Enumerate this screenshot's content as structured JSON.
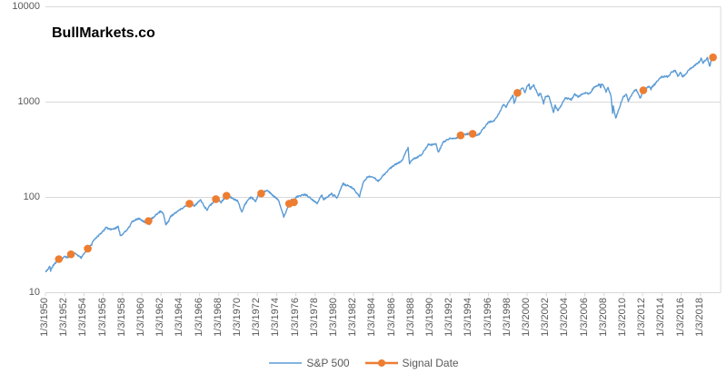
{
  "brand": "BullMarkets.co",
  "chart_data": {
    "type": "line",
    "title": "BullMarkets.co",
    "x_axis": {
      "type": "date",
      "label_rotation_deg": 90,
      "tick_labels": [
        "1/3/1950",
        "1/3/1952",
        "1/3/1954",
        "1/3/1956",
        "1/3/1958",
        "1/3/1960",
        "1/3/1962",
        "1/3/1964",
        "1/3/1966",
        "1/3/1968",
        "1/3/1970",
        "1/3/1972",
        "1/3/1974",
        "1/3/1976",
        "1/3/1978",
        "1/3/1980",
        "1/3/1982",
        "1/3/1984",
        "1/3/1986",
        "1/3/1988",
        "1/3/1990",
        "1/3/1992",
        "1/3/1994",
        "1/3/1996",
        "1/3/1998",
        "1/3/2000",
        "1/3/2002",
        "1/3/2004",
        "1/3/2006",
        "1/3/2008",
        "1/3/2010",
        "1/3/2012",
        "1/3/2014",
        "1/3/2016",
        "1/3/2018"
      ],
      "x_range_years": [
        1950.0,
        2019.4
      ]
    },
    "y_axis": {
      "scale": "log",
      "ticks": [
        10,
        100,
        1000,
        10000
      ],
      "range": [
        10,
        10000
      ],
      "gridlines": true
    },
    "legend": {
      "position": "bottom",
      "entries": [
        "S&P 500",
        "Signal Date"
      ]
    },
    "colors": {
      "sp500": "#5B9BD5",
      "signal": "#ED7D31",
      "grid": "#D9D9D9",
      "axis_text": "#595959"
    },
    "series": [
      {
        "name": "S&P 500",
        "type": "line",
        "color": "#5B9BD5",
        "points": [
          [
            1950.0,
            16.7
          ],
          [
            1950.12,
            17.0
          ],
          [
            1950.45,
            18.7
          ],
          [
            1950.54,
            17.0
          ],
          [
            1950.7,
            18.5
          ],
          [
            1951.0,
            20.4
          ],
          [
            1951.4,
            22.5
          ],
          [
            1951.55,
            21.6
          ],
          [
            1951.95,
            23.8
          ],
          [
            1952.35,
            23.4
          ],
          [
            1952.65,
            25.2
          ],
          [
            1953.0,
            26.2
          ],
          [
            1953.3,
            24.8
          ],
          [
            1953.7,
            23.3
          ],
          [
            1954.0,
            25.5
          ],
          [
            1954.4,
            29.0
          ],
          [
            1954.8,
            32.0
          ],
          [
            1955.0,
            36.0
          ],
          [
            1955.2,
            37.0
          ],
          [
            1955.8,
            42.5
          ],
          [
            1956.0,
            44.5
          ],
          [
            1956.3,
            48.5
          ],
          [
            1956.6,
            46.5
          ],
          [
            1957.0,
            46.2
          ],
          [
            1957.55,
            49.1
          ],
          [
            1957.8,
            39.2
          ],
          [
            1958.0,
            41.1
          ],
          [
            1958.5,
            45.5
          ],
          [
            1959.0,
            55.2
          ],
          [
            1959.6,
            60.0
          ],
          [
            1960.0,
            58.0
          ],
          [
            1960.3,
            54.5
          ],
          [
            1960.7,
            56.5
          ],
          [
            1960.82,
            52.5
          ],
          [
            1961.0,
            59.7
          ],
          [
            1961.95,
            71.7
          ],
          [
            1962.2,
            69.0
          ],
          [
            1962.5,
            52.3
          ],
          [
            1962.8,
            56.2
          ],
          [
            1963.0,
            63.1
          ],
          [
            1964.0,
            75.0
          ],
          [
            1964.95,
            84.8
          ],
          [
            1965.1,
            87.0
          ],
          [
            1965.45,
            81.6
          ],
          [
            1966.1,
            93.8
          ],
          [
            1966.75,
            73.2
          ],
          [
            1967.0,
            80.3
          ],
          [
            1967.7,
            96.0
          ],
          [
            1967.95,
            96.5
          ],
          [
            1968.2,
            87.7
          ],
          [
            1968.9,
            108.4
          ],
          [
            1969.4,
            97.0
          ],
          [
            1969.95,
            92.1
          ],
          [
            1970.4,
            69.3
          ],
          [
            1970.7,
            84.2
          ],
          [
            1971.0,
            92.2
          ],
          [
            1971.35,
            101.0
          ],
          [
            1971.85,
            90.2
          ],
          [
            1972.0,
            102.1
          ],
          [
            1972.4,
            110.0
          ],
          [
            1973.03,
            119.9
          ],
          [
            1973.6,
            104.0
          ],
          [
            1974.0,
            97.6
          ],
          [
            1974.2,
            93.0
          ],
          [
            1974.75,
            62.3
          ],
          [
            1974.9,
            68.0
          ],
          [
            1975.3,
            86.0
          ],
          [
            1975.55,
            95.2
          ],
          [
            1975.8,
            89.0
          ],
          [
            1976.0,
            100.9
          ],
          [
            1976.95,
            107.5
          ],
          [
            1977.5,
            99.0
          ],
          [
            1978.2,
            87.0
          ],
          [
            1978.7,
            106.0
          ],
          [
            1978.87,
            94.0
          ],
          [
            1979.0,
            96.1
          ],
          [
            1979.75,
            110.0
          ],
          [
            1979.84,
            102.0
          ],
          [
            1980.0,
            107.9
          ],
          [
            1980.25,
            98.2
          ],
          [
            1980.9,
            140.5
          ],
          [
            1981.0,
            135.8
          ],
          [
            1981.6,
            131.0
          ],
          [
            1982.0,
            122.6
          ],
          [
            1982.6,
            102.4
          ],
          [
            1983.0,
            145.3
          ],
          [
            1983.5,
            166.0
          ],
          [
            1984.0,
            164.9
          ],
          [
            1984.55,
            147.8
          ],
          [
            1985.0,
            167.2
          ],
          [
            1986.0,
            211.3
          ],
          [
            1986.7,
            231.3
          ],
          [
            1987.0,
            242.2
          ],
          [
            1987.65,
            336.8
          ],
          [
            1987.8,
            223.9
          ],
          [
            1988.0,
            247.1
          ],
          [
            1989.0,
            277.7
          ],
          [
            1989.75,
            359.8
          ],
          [
            1990.0,
            353.4
          ],
          [
            1990.55,
            368.9
          ],
          [
            1990.78,
            295.5
          ],
          [
            1991.0,
            330.2
          ],
          [
            1991.3,
            380.0
          ],
          [
            1992.0,
            417.1
          ],
          [
            1992.5,
            412.0
          ],
          [
            1993.1,
            447.0
          ],
          [
            1993.95,
            466.5
          ],
          [
            1994.25,
            445.8
          ],
          [
            1994.35,
            465.0
          ],
          [
            1994.5,
            444.0
          ],
          [
            1995.0,
            459.3
          ],
          [
            1996.0,
            615.9
          ],
          [
            1996.55,
            635.0
          ],
          [
            1997.0,
            740.7
          ],
          [
            1997.58,
            954.3
          ],
          [
            1997.82,
            877.0
          ],
          [
            1998.0,
            970.4
          ],
          [
            1998.55,
            1186.8
          ],
          [
            1998.65,
            957.3
          ],
          [
            1999.0,
            1229.2
          ],
          [
            1999.55,
            1418.8
          ],
          [
            1999.78,
            1247.4
          ],
          [
            2000.0,
            1469.3
          ],
          [
            2000.22,
            1527.5
          ],
          [
            2000.3,
            1356.6
          ],
          [
            2000.67,
            1520.8
          ],
          [
            2000.95,
            1320.3
          ],
          [
            2001.2,
            1160.3
          ],
          [
            2001.4,
            1255.8
          ],
          [
            2001.72,
            965.8
          ],
          [
            2001.9,
            1139.5
          ],
          [
            2002.25,
            1165.6
          ],
          [
            2002.75,
            776.8
          ],
          [
            2002.9,
            936.3
          ],
          [
            2003.2,
            800.7
          ],
          [
            2003.95,
            1111.9
          ],
          [
            2004.6,
            1063.2
          ],
          [
            2004.95,
            1211.9
          ],
          [
            2005.3,
            1137.5
          ],
          [
            2005.95,
            1248.3
          ],
          [
            2006.45,
            1223.7
          ],
          [
            2006.95,
            1418.3
          ],
          [
            2007.55,
            1553.1
          ],
          [
            2007.63,
            1406.7
          ],
          [
            2007.75,
            1565.2
          ],
          [
            2007.95,
            1468.4
          ],
          [
            2008.2,
            1273.4
          ],
          [
            2008.4,
            1426.6
          ],
          [
            2008.72,
            1166.4
          ],
          [
            2008.88,
            752.4
          ],
          [
            2008.95,
            903.3
          ],
          [
            2009.2,
            676.5
          ],
          [
            2009.95,
            1115.1
          ],
          [
            2010.3,
            1217.3
          ],
          [
            2010.52,
            1022.6
          ],
          [
            2010.95,
            1257.6
          ],
          [
            2011.33,
            1363.6
          ],
          [
            2011.75,
            1099.2
          ],
          [
            2011.95,
            1257.6
          ],
          [
            2012.07,
            1330.0
          ],
          [
            2012.7,
            1465.8
          ],
          [
            2012.87,
            1353.3
          ],
          [
            2012.95,
            1426.2
          ],
          [
            2013.95,
            1848.4
          ],
          [
            2014.76,
            1862.5
          ],
          [
            2014.95,
            2058.9
          ],
          [
            2015.4,
            2130.8
          ],
          [
            2015.65,
            1867.6
          ],
          [
            2015.95,
            2043.9
          ],
          [
            2016.12,
            1829.1
          ],
          [
            2016.95,
            2238.8
          ],
          [
            2017.95,
            2673.6
          ],
          [
            2018.07,
            2872.9
          ],
          [
            2018.26,
            2581.0
          ],
          [
            2018.72,
            2930.8
          ],
          [
            2018.97,
            2351.1
          ],
          [
            2019.1,
            2700.0
          ],
          [
            2019.3,
            2950.0
          ]
        ]
      },
      {
        "name": "Signal Date",
        "type": "scatter",
        "color": "#ED7D31",
        "points": [
          [
            1951.4,
            22.5
          ],
          [
            1952.65,
            25.3
          ],
          [
            1954.4,
            29.0
          ],
          [
            1960.7,
            56.5
          ],
          [
            1964.95,
            86.0
          ],
          [
            1967.7,
            96.0
          ],
          [
            1968.8,
            104.0
          ],
          [
            1972.4,
            110.0
          ],
          [
            1975.3,
            86.0
          ],
          [
            1975.8,
            89.0
          ],
          [
            1993.1,
            447.0
          ],
          [
            1994.35,
            465.0
          ],
          [
            1999.0,
            1250.0
          ],
          [
            2012.07,
            1330.0
          ],
          [
            2019.3,
            2950.0
          ]
        ]
      }
    ]
  }
}
